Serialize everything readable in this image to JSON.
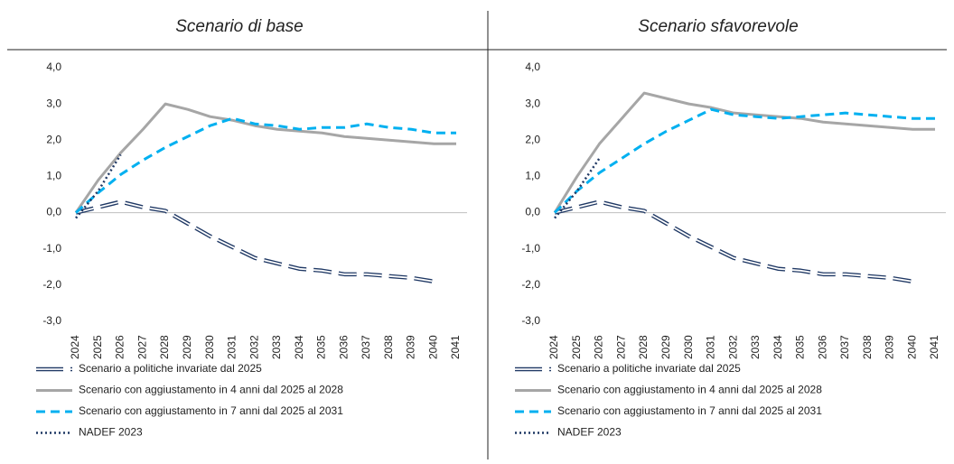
{
  "chart_data": [
    {
      "type": "line",
      "title": "Scenario di base",
      "categories": [
        "2024",
        "2025",
        "2026",
        "2027",
        "2028",
        "2029",
        "2030",
        "2031",
        "2032",
        "2033",
        "2034",
        "2035",
        "2036",
        "2037",
        "2038",
        "2039",
        "2040",
        "2041"
      ],
      "ylim": [
        -3,
        4
      ],
      "yticks": [
        {
          "value": -3,
          "label": "-3,0"
        },
        {
          "value": -2,
          "label": "-2,0"
        },
        {
          "value": -1,
          "label": "-1,0"
        },
        {
          "value": 0,
          "label": "0,0"
        },
        {
          "value": 1,
          "label": "1,0"
        },
        {
          "value": 2,
          "label": "2,0"
        },
        {
          "value": 3,
          "label": "3,0"
        },
        {
          "value": 4,
          "label": "4,0"
        }
      ],
      "series": [
        {
          "name": "Scenario a politiche invariate dal 2025",
          "color": "#1f3864",
          "style": "outlined-dashed",
          "values": [
            0,
            0.15,
            0.3,
            0.15,
            0.05,
            -0.3,
            -0.65,
            -0.95,
            -1.25,
            -1.4,
            -1.55,
            -1.6,
            -1.7,
            -1.7,
            -1.75,
            -1.8,
            -1.9,
            null
          ]
        },
        {
          "name": "Scenario con aggiustamento in 4 anni dal 2025 al 2028",
          "color": "#a6a6a6",
          "style": "solid",
          "values": [
            0,
            0.9,
            1.65,
            2.3,
            3.0,
            2.85,
            2.65,
            2.55,
            2.4,
            2.3,
            2.25,
            2.2,
            2.1,
            2.05,
            2.0,
            1.95,
            1.9,
            1.9
          ]
        },
        {
          "name": "Scenario con aggiustamento in 7 anni dal 2025 al 2031",
          "color": "#00b0f0",
          "style": "dashed",
          "values": [
            0,
            0.55,
            1.05,
            1.45,
            1.8,
            2.1,
            2.4,
            2.6,
            2.45,
            2.4,
            2.3,
            2.35,
            2.35,
            2.45,
            2.35,
            2.3,
            2.2,
            2.2
          ]
        },
        {
          "name": "NADEF 2023",
          "color": "#1f3864",
          "style": "dotted",
          "values": [
            -0.15,
            0.6,
            1.6,
            null,
            null,
            null,
            null,
            null,
            null,
            null,
            null,
            null,
            null,
            null,
            null,
            null,
            null,
            null
          ]
        }
      ]
    },
    {
      "type": "line",
      "title": "Scenario sfavorevole",
      "categories": [
        "2024",
        "2025",
        "2026",
        "2027",
        "2028",
        "2029",
        "2030",
        "2031",
        "2032",
        "2033",
        "2034",
        "2035",
        "2036",
        "2037",
        "2038",
        "2039",
        "2040",
        "2041"
      ],
      "ylim": [
        -3,
        4
      ],
      "yticks": [
        {
          "value": -3,
          "label": "-3,0"
        },
        {
          "value": -2,
          "label": "-2,0"
        },
        {
          "value": -1,
          "label": "-1,0"
        },
        {
          "value": 0,
          "label": "0,0"
        },
        {
          "value": 1,
          "label": "1,0"
        },
        {
          "value": 2,
          "label": "2,0"
        },
        {
          "value": 3,
          "label": "3,0"
        },
        {
          "value": 4,
          "label": "4,0"
        }
      ],
      "series": [
        {
          "name": "Scenario a politiche invariate dal 2025",
          "color": "#1f3864",
          "style": "outlined-dashed",
          "values": [
            0,
            0.15,
            0.3,
            0.15,
            0.05,
            -0.3,
            -0.65,
            -0.95,
            -1.25,
            -1.4,
            -1.55,
            -1.6,
            -1.7,
            -1.7,
            -1.75,
            -1.8,
            -1.9,
            null
          ]
        },
        {
          "name": "Scenario con aggiustamento in 4 anni dal 2025 al 2028",
          "color": "#a6a6a6",
          "style": "solid",
          "values": [
            0,
            1.0,
            1.9,
            2.6,
            3.3,
            3.15,
            3.0,
            2.9,
            2.75,
            2.7,
            2.65,
            2.6,
            2.5,
            2.45,
            2.4,
            2.35,
            2.3,
            2.3
          ]
        },
        {
          "name": "Scenario con aggiustamento in 7 anni dal 2025 al 2031",
          "color": "#00b0f0",
          "style": "dashed",
          "values": [
            0,
            0.6,
            1.1,
            1.5,
            1.9,
            2.25,
            2.55,
            2.85,
            2.7,
            2.65,
            2.6,
            2.65,
            2.7,
            2.75,
            2.7,
            2.65,
            2.6,
            2.6
          ]
        },
        {
          "name": "NADEF 2023",
          "color": "#1f3864",
          "style": "dotted",
          "values": [
            -0.15,
            0.6,
            1.5,
            null,
            null,
            null,
            null,
            null,
            null,
            null,
            null,
            null,
            null,
            null,
            null,
            null,
            null,
            null
          ]
        }
      ]
    }
  ]
}
